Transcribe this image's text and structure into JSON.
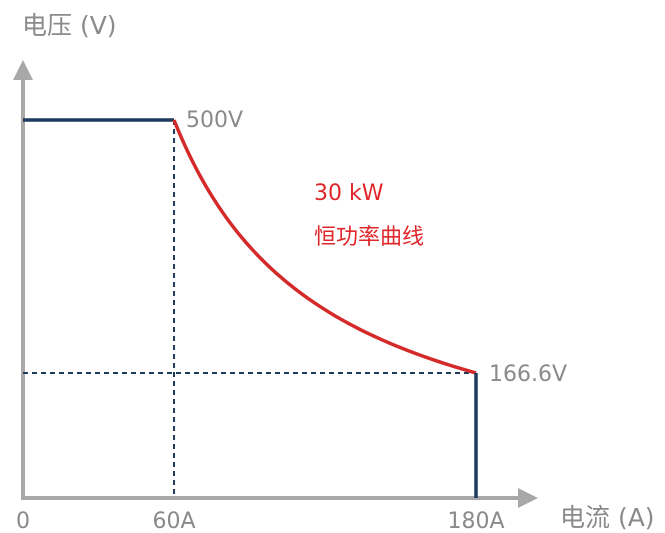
{
  "chart_data": {
    "type": "line",
    "ylabel": "电压 (V)",
    "xlabel": "电流 (A)",
    "origin_label": "0",
    "xlim": [
      0,
      200
    ],
    "ylim": [
      0,
      600
    ],
    "x_ticks": [
      {
        "value": 60,
        "label": "60A"
      },
      {
        "value": 180,
        "label": "180A"
      }
    ],
    "series": [
      {
        "color": "#1f3b5e",
        "points": [
          [
            0,
            500
          ],
          [
            60,
            500
          ]
        ]
      },
      {
        "color": "#d42a2a",
        "power_w": 30000,
        "x_range": [
          60,
          180
        ]
      },
      {
        "color": "#1f3b5e",
        "points": [
          [
            180,
            166.6
          ],
          [
            180,
            0
          ]
        ]
      }
    ],
    "point_labels": [
      {
        "x": 60,
        "y": 500,
        "text": "500V"
      },
      {
        "x": 180,
        "y": 166.6,
        "text": "166.6V"
      }
    ],
    "reference_lines": [
      {
        "orientation": "vertical",
        "x": 60,
        "y_range": [
          0,
          500
        ]
      },
      {
        "orientation": "horizontal",
        "y": 166.6,
        "x_range": [
          0,
          180
        ]
      }
    ],
    "annotations": [
      {
        "text": "30 kW"
      },
      {
        "text": "恒功率曲线"
      }
    ],
    "colors": {
      "axis": "#a8a8a8",
      "dashed": "#1f3b5e",
      "label": "#8a8a8a",
      "annotation": "#e0262b"
    }
  }
}
